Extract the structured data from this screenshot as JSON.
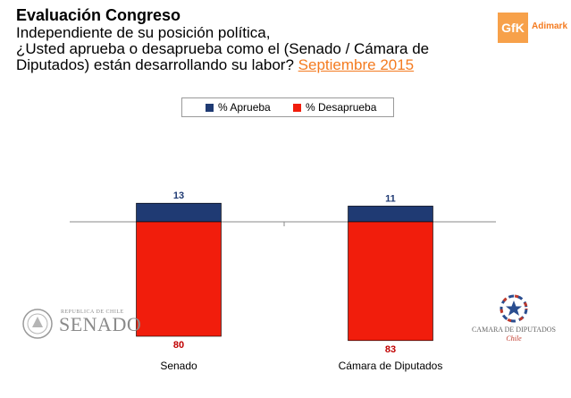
{
  "header": {
    "title": "Evaluación Congreso",
    "question_line1": "Independiente de su posición política,",
    "question_line2": "¿Usted aprueba o desaprueba como el (Senado / Cámara de",
    "question_line3_prefix": "Diputados) están desarrollando su labor?",
    "question_date": "Septiembre 2015"
  },
  "logos": {
    "gfk_mark": "GfK",
    "gfk_name": "Adimark",
    "senado_sub": "REPUBLICA DE CHILE",
    "senado_name": "SENADO",
    "camara_name": "CAMARA DE DIPUTADOS",
    "camara_country": "Chile"
  },
  "legend": {
    "aprueba": "% Aprueba",
    "desaprueba": "% Desaprueba"
  },
  "colors": {
    "aprueba": "#1f3a73",
    "desaprueba": "#f11d0c",
    "aprueba_label": "#1f3a73",
    "desaprueba_label": "#c00000"
  },
  "chart_data": {
    "type": "bar",
    "stacked": "diverging",
    "title": "Evaluación Congreso",
    "categories": [
      "Senado",
      "Cámara de Diputados"
    ],
    "series": [
      {
        "name": "% Aprueba",
        "values": [
          13,
          11
        ],
        "direction": "up"
      },
      {
        "name": "% Desaprueba",
        "values": [
          80,
          83
        ],
        "direction": "down"
      }
    ],
    "unit": "%",
    "legend_position": "top"
  }
}
